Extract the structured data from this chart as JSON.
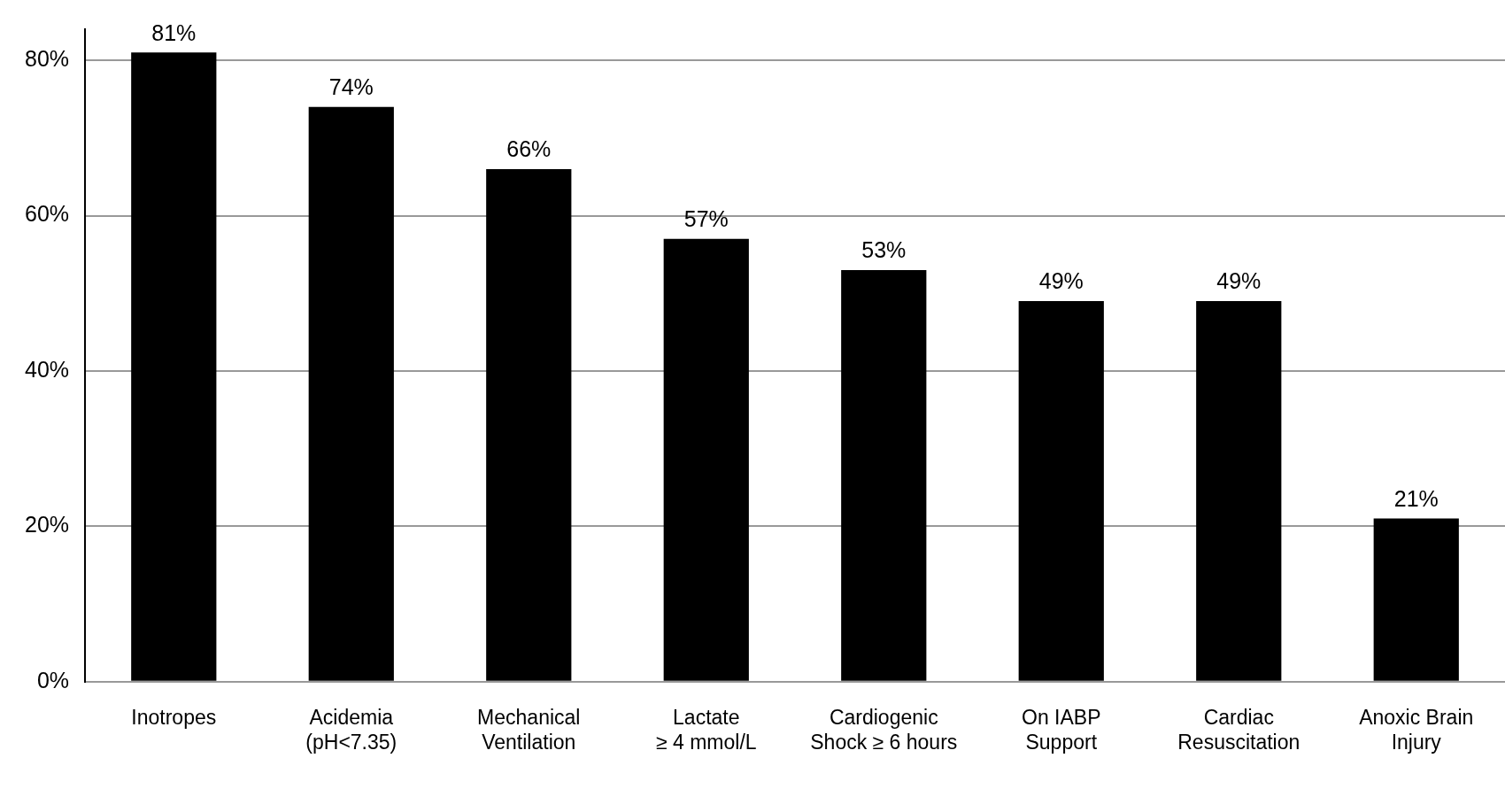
{
  "chart_data": {
    "type": "bar",
    "categories": [
      "Inotropes",
      "Acidemia\n(pH<7.35)",
      "Mechanical\nVentilation",
      "Lactate\n≥ 4 mmol/L",
      "Cardiogenic\nShock ≥ 6 hours",
      "On IABP\nSupport",
      "Cardiac\nResuscitation",
      "Anoxic Brain\nInjury"
    ],
    "values": [
      81,
      74,
      66,
      57,
      53,
      49,
      49,
      21
    ],
    "value_labels": [
      "81%",
      "74%",
      "66%",
      "57%",
      "53%",
      "49%",
      "49%",
      "21%"
    ],
    "color": "#000000",
    "ylim": [
      0,
      84
    ],
    "yticks": [
      {
        "value": 0,
        "label": "0%"
      },
      {
        "value": 20,
        "label": "20%"
      },
      {
        "value": 40,
        "label": "40%"
      },
      {
        "value": 60,
        "label": "60%"
      },
      {
        "value": 80,
        "label": "80%"
      }
    ],
    "grid": "y"
  }
}
